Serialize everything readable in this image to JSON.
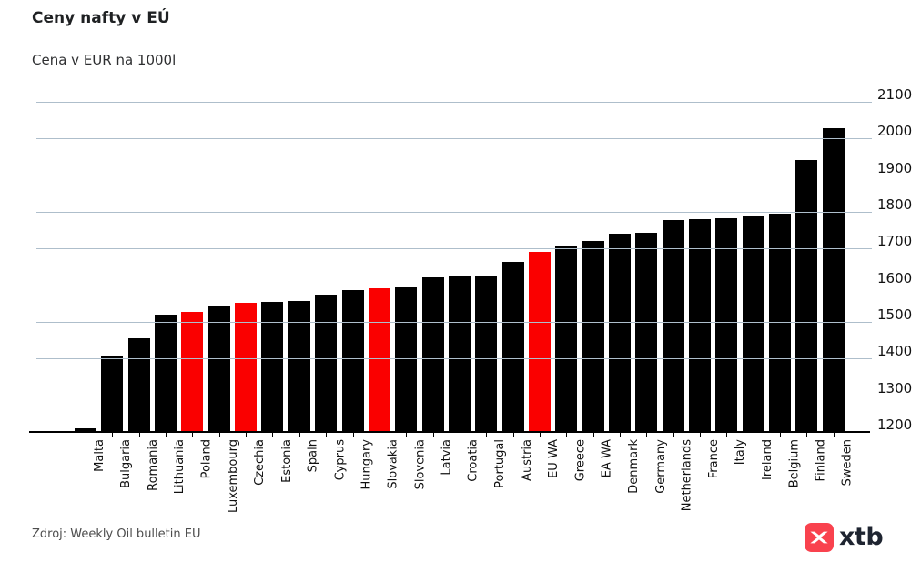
{
  "header": {
    "title": "Ceny nafty v EÚ",
    "subtitle": "Cena v EUR na 1000l"
  },
  "footer": {
    "source": "Zdroj: Weekly Oil bulletin EU",
    "logo_text": "xtb"
  },
  "colors": {
    "bar": "#000000",
    "bar_highlight": "#fa0000",
    "gridline": "#aebecb",
    "axis": "#000000",
    "logo_red": "#f9424e",
    "logo_text": "#1e2430"
  },
  "chart_data": {
    "type": "bar",
    "title": "Ceny nafty v EÚ",
    "subtitle": "Cena v EUR na 1000l",
    "xlabel": "",
    "ylabel": "",
    "ylim": [
      1200,
      2100
    ],
    "yticks": [
      1200,
      1300,
      1400,
      1500,
      1600,
      1700,
      1800,
      1900,
      2000,
      2100
    ],
    "grid": true,
    "legend": false,
    "categories": [
      "Malta",
      "Bulgaria",
      "Romania",
      "Lithuania",
      "Poland",
      "Luxembourg",
      "Czechia",
      "Estonia",
      "Spain",
      "Cyprus",
      "Hungary",
      "Slovakia",
      "Slovenia",
      "Latvia",
      "Croatia",
      "Portugal",
      "Austria",
      "EU WA",
      "Greece",
      "EA WA",
      "Denmark",
      "Germany",
      "Netherlands",
      "France",
      "Italy",
      "Ireland",
      "Belgium",
      "Finland",
      "Sweden"
    ],
    "values": [
      1210,
      1409,
      1456,
      1519,
      1527,
      1543,
      1551,
      1554,
      1556,
      1574,
      1587,
      1591,
      1594,
      1621,
      1623,
      1626,
      1663,
      1691,
      1707,
      1721,
      1740,
      1744,
      1778,
      1779,
      1782,
      1790,
      1794,
      1941,
      2028
    ],
    "highlighted_categories": [
      "Poland",
      "Czechia",
      "Slovakia",
      "EU WA"
    ]
  }
}
